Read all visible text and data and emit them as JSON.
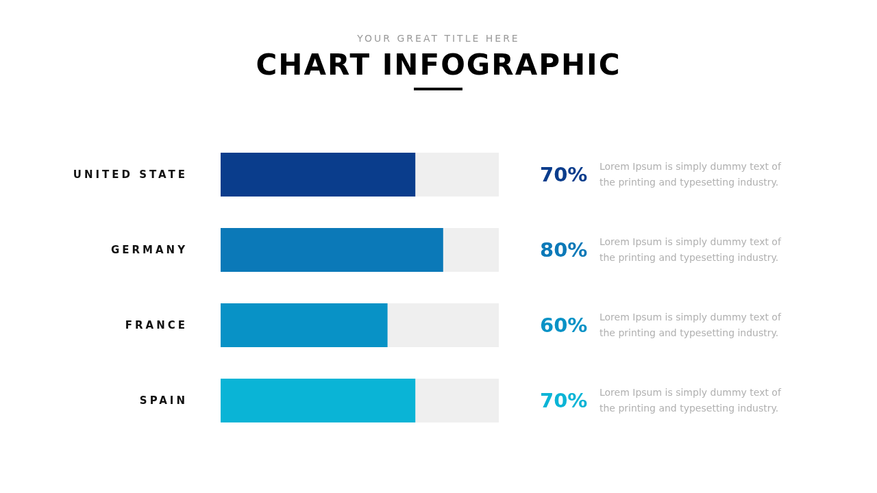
{
  "chart_data": {
    "type": "bar",
    "orientation": "horizontal",
    "subtitle": "YOUR GREAT TITLE HERE",
    "title": "CHART INFOGRAPHIC",
    "categories": [
      "UNITED STATE",
      "GERMANY",
      "FRANCE",
      "SPAIN"
    ],
    "values": [
      70,
      80,
      60,
      70
    ],
    "colors": [
      "#0a3d8c",
      "#0b79b8",
      "#0892c6",
      "#0ab4d6"
    ],
    "value_labels": [
      "70%",
      "80%",
      "60%",
      "70%"
    ],
    "xlim": [
      0,
      100
    ],
    "tick_labels": "y",
    "annotations": [
      "Lorem Ipsum is simply dummy text of the printing and typesetting industry.",
      "Lorem Ipsum is simply dummy text of the printing and typesetting industry.",
      "Lorem Ipsum is simply dummy text of the printing and typesetting industry.",
      "Lorem Ipsum is simply dummy text of the printing and typesetting industry."
    ]
  }
}
